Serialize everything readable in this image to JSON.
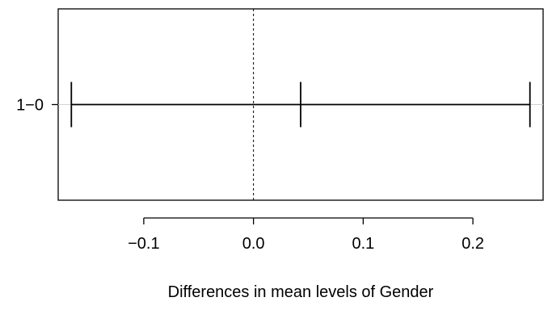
{
  "chart_data": {
    "type": "errorbar",
    "title": "",
    "xlabel": "Differences in mean levels of Gender",
    "ylabel": "",
    "xlim": [
      -0.178,
      0.264
    ],
    "x_ticks": [
      {
        "value": -0.1,
        "label": "−0.1"
      },
      {
        "value": 0.0,
        "label": "0.0"
      },
      {
        "value": 0.1,
        "label": "0.1"
      },
      {
        "value": 0.2,
        "label": "0.2"
      }
    ],
    "reference_line": {
      "x": 0,
      "style": "dotted"
    },
    "comparisons": [
      {
        "label": "1−0",
        "estimate": 0.043,
        "lower": -0.166,
        "upper": 0.252
      }
    ],
    "colors": {
      "line": "#000000",
      "grid": "#d3d3d3",
      "background": "#ffffff"
    }
  }
}
